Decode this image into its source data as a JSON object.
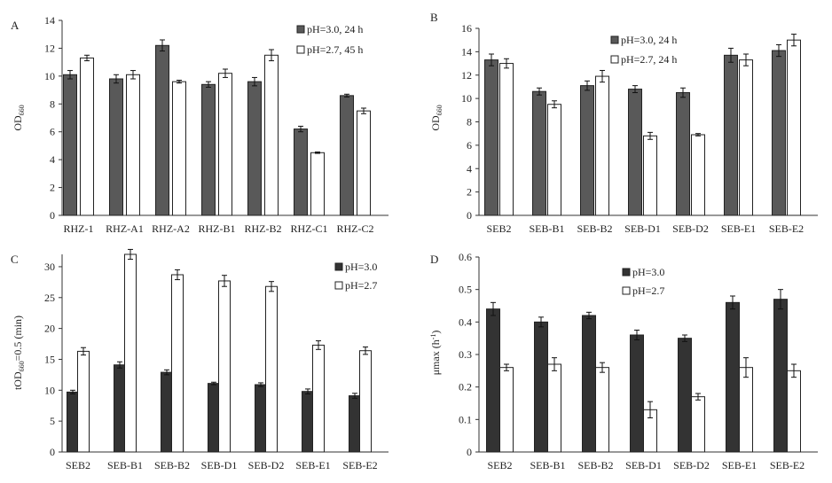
{
  "chart_data": [
    {
      "panel": "A",
      "type": "bar",
      "ylabel": "OD",
      "ylabel_sub": "660",
      "ylim": [
        0,
        14
      ],
      "yticks": [
        "0",
        "2",
        "4",
        "6",
        "8",
        "10",
        "12",
        "14"
      ],
      "categories": [
        "RHZ-1",
        "RHZ-A1",
        "RHZ-A2",
        "RHZ-B1",
        "RHZ-B2",
        "RHZ-C1",
        "RHZ-C2"
      ],
      "series": [
        {
          "name": "pH=3.0, 24 h",
          "fill": "#595959",
          "values": [
            10.1,
            9.8,
            12.2,
            9.4,
            9.6,
            6.2,
            8.6
          ],
          "errors": [
            0.3,
            0.3,
            0.4,
            0.2,
            0.3,
            0.2,
            0.1
          ]
        },
        {
          "name": "pH=2.7, 45 h",
          "fill": "#ffffff",
          "values": [
            11.3,
            10.1,
            9.6,
            10.2,
            11.5,
            4.5,
            7.5
          ],
          "errors": [
            0.2,
            0.3,
            0.1,
            0.3,
            0.4,
            0.05,
            0.2
          ]
        }
      ],
      "legend_position": "top-right"
    },
    {
      "panel": "B",
      "type": "bar",
      "ylabel": "OD",
      "ylabel_sub": "660",
      "ylim": [
        0,
        16
      ],
      "yticks": [
        "0",
        "2",
        "4",
        "6",
        "8",
        "10",
        "12",
        "14",
        "16"
      ],
      "categories": [
        "SEB2",
        "SEB-B1",
        "SEB-B2",
        "SEB-D1",
        "SEB-D2",
        "SEB-E1",
        "SEB-E2"
      ],
      "series": [
        {
          "name": "pH=3.0, 24 h",
          "fill": "#595959",
          "values": [
            13.3,
            10.6,
            11.1,
            10.8,
            10.5,
            13.7,
            14.1
          ],
          "errors": [
            0.5,
            0.3,
            0.4,
            0.3,
            0.4,
            0.6,
            0.5
          ]
        },
        {
          "name": "pH=2.7, 24 h",
          "fill": "#ffffff",
          "values": [
            13.0,
            9.5,
            11.9,
            6.8,
            6.9,
            13.3,
            15.0
          ],
          "errors": [
            0.4,
            0.3,
            0.5,
            0.3,
            0.1,
            0.5,
            0.5
          ]
        }
      ],
      "legend_position": "top-center"
    },
    {
      "panel": "C",
      "type": "bar",
      "ylabel": "tOD",
      "ylabel_sub": "660",
      "ylabel_rest": "=0.5 (min)",
      "ylim": [
        0,
        32
      ],
      "yticks": [
        "0",
        "5",
        "10",
        "15",
        "20",
        "25",
        "30"
      ],
      "categories": [
        "SEB2",
        "SEB-B1",
        "SEB-B2",
        "SEB-D1",
        "SEB-D2",
        "SEB-E1",
        "SEB-E2"
      ],
      "series": [
        {
          "name": "pH=3.0",
          "fill": "#333333",
          "values": [
            9.7,
            14.1,
            12.9,
            11.1,
            10.9,
            9.8,
            9.1
          ],
          "errors": [
            0.3,
            0.5,
            0.4,
            0.2,
            0.3,
            0.4,
            0.4
          ]
        },
        {
          "name": "pH=2.7",
          "fill": "#ffffff",
          "values": [
            16.3,
            32.0,
            28.7,
            27.7,
            26.8,
            17.3,
            16.4
          ],
          "errors": [
            0.6,
            0.8,
            0.8,
            0.9,
            0.8,
            0.7,
            0.6
          ]
        }
      ],
      "legend_position": "top-right"
    },
    {
      "panel": "D",
      "type": "bar",
      "ylabel": "μmax (h",
      "ylabel_sup": "-1",
      "ylabel_rest": ")",
      "ylim": [
        0,
        0.6
      ],
      "yticks": [
        "0",
        "0.1",
        "0.2",
        "0.3",
        "0.4",
        "0.5",
        "0.6"
      ],
      "categories": [
        "SEB2",
        "SEB-B1",
        "SEB-B2",
        "SEB-D1",
        "SEB-D2",
        "SEB-E1",
        "SEB-E2"
      ],
      "series": [
        {
          "name": "pH=3.0",
          "fill": "#333333",
          "values": [
            0.44,
            0.4,
            0.42,
            0.36,
            0.35,
            0.46,
            0.47
          ],
          "errors": [
            0.02,
            0.015,
            0.01,
            0.015,
            0.01,
            0.02,
            0.03
          ]
        },
        {
          "name": "pH=2.7",
          "fill": "#ffffff",
          "values": [
            0.26,
            0.27,
            0.26,
            0.13,
            0.17,
            0.26,
            0.25
          ],
          "errors": [
            0.01,
            0.02,
            0.015,
            0.025,
            0.01,
            0.03,
            0.02
          ]
        }
      ],
      "legend_position": "top-left"
    }
  ]
}
